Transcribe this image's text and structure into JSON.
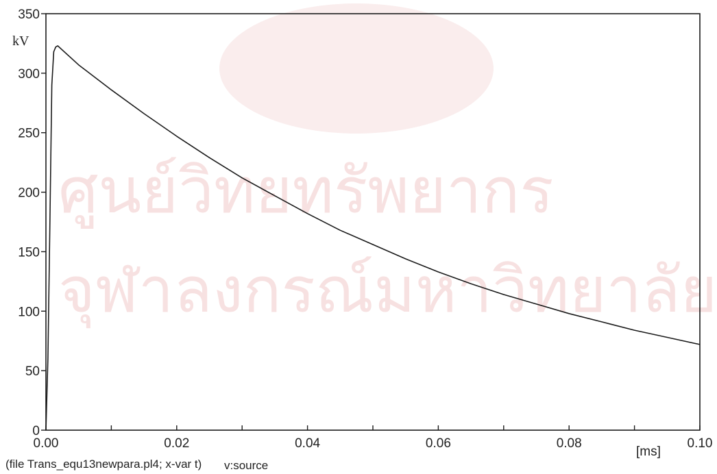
{
  "watermark": {
    "line1": "ศูนย์วิทยทรัพยากร",
    "line2": "จุฬาลงกรณ์มหาวิทยาลัย"
  },
  "footer": {
    "file_info": "(file Trans_equ13newpara.pl4; x-var t)",
    "series_label": "v:source"
  },
  "chart_data": {
    "type": "line",
    "title": "",
    "xlabel": "[ms]",
    "ylabel": "kV",
    "xlim": [
      0,
      0.1
    ],
    "ylim": [
      0,
      350
    ],
    "x_ticks": [
      "0.00",
      "0.02",
      "0.04",
      "0.06",
      "0.08",
      "0.10"
    ],
    "x_tick_values": [
      0,
      0.02,
      0.04,
      0.06,
      0.08,
      0.1
    ],
    "x_minor_step": 0.01,
    "y_ticks": [
      "0",
      "50",
      "100",
      "150",
      "200",
      "250",
      "300",
      "350"
    ],
    "y_tick_values": [
      0,
      50,
      100,
      150,
      200,
      250,
      300,
      350
    ],
    "grid": false,
    "series": [
      {
        "name": "v:source",
        "color": "#1a1a1a",
        "x": [
          0,
          0.0003,
          0.0006,
          0.0009,
          0.0012,
          0.0015,
          0.0018,
          0.005,
          0.01,
          0.015,
          0.02,
          0.025,
          0.03,
          0.035,
          0.04,
          0.045,
          0.05,
          0.055,
          0.06,
          0.065,
          0.07,
          0.075,
          0.08,
          0.085,
          0.09,
          0.095,
          0.1
        ],
        "y": [
          0,
          60,
          170,
          290,
          318,
          322,
          323,
          307,
          286,
          266,
          247,
          229,
          212,
          197,
          182,
          168,
          156,
          144,
          133,
          123,
          114,
          106,
          98,
          91,
          84,
          78,
          72
        ]
      }
    ]
  }
}
